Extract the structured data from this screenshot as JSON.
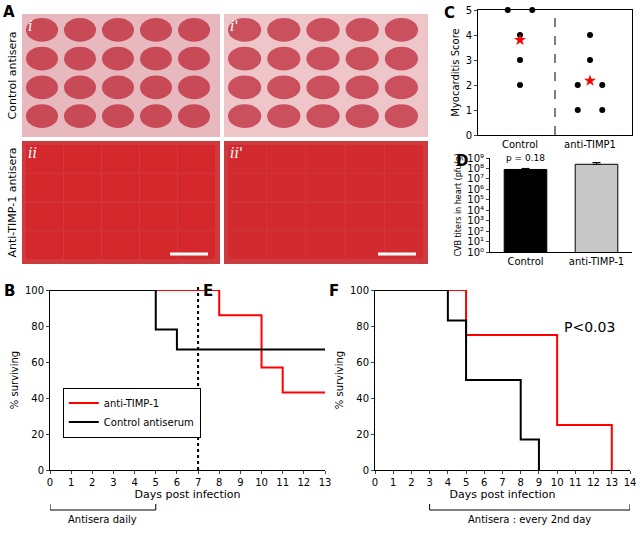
{
  "chart_data": [
    {
      "type": "image",
      "panels": [
        "A"
      ],
      "row_labels": [
        "Control antisera",
        "Anti-TIMP-1 antisera"
      ],
      "image_labels": [
        [
          "i",
          "i'"
        ],
        [
          "ii",
          "ii'"
        ]
      ]
    },
    {
      "type": "scatter",
      "panels": [
        "C"
      ],
      "categories": [
        "Control",
        "anti-TIMP1"
      ],
      "ylabel": "Myocarditis Score",
      "ylim": [
        0,
        5
      ],
      "yticks": [
        0,
        1,
        2,
        3,
        4,
        5
      ],
      "series": [
        {
          "values": [
            [
              5,
              5,
              4,
              3,
              2
            ],
            [
              4,
              3,
              2,
              2,
              1,
              1
            ]
          ],
          "color": "#000000",
          "marker": "circle"
        },
        {
          "values": [
            3.8,
            2.17
          ],
          "color": "#ff0000",
          "marker": "star"
        }
      ]
    },
    {
      "type": "bar",
      "panels": [
        "D"
      ],
      "categories": [
        "Control",
        "anti-TIMP-1"
      ],
      "values": [
        80000000,
        250000000
      ],
      "errors": [
        20000000,
        120000000
      ],
      "colors": [
        "#000000",
        "#c8c8c8"
      ],
      "log": "y",
      "ylabel": "CVB titers in heart (pfu/g)",
      "ylim": [
        1,
        1000000000
      ],
      "yticks": [
        {
          "value": 1,
          "label": "10⁰"
        },
        {
          "value": 10,
          "label": "10¹"
        },
        {
          "value": 100,
          "label": "10²"
        },
        {
          "value": 1000,
          "label": "10³"
        },
        {
          "value": 10000,
          "label": "10⁴"
        },
        {
          "value": 100000,
          "label": "10⁵"
        },
        {
          "value": 1000000,
          "label": "10⁶"
        },
        {
          "value": 10000000,
          "label": "10⁷"
        },
        {
          "value": 100000000,
          "label": "10⁸"
        },
        {
          "value": 1000000000,
          "label": "10⁹"
        }
      ],
      "annotations": [
        {
          "text": "p = 0.18",
          "category": "Control"
        }
      ]
    },
    {
      "type": "line",
      "panels": [
        "B",
        "E"
      ],
      "xlabel": "Days post infection",
      "ylabel": "% surviving",
      "xlim": [
        0,
        13
      ],
      "xticks": [
        0,
        1,
        2,
        3,
        4,
        5,
        6,
        7,
        8,
        9,
        10,
        11,
        12,
        13
      ],
      "ylim": [
        0,
        100
      ],
      "yticks": [
        0,
        20,
        40,
        60,
        80,
        100
      ],
      "line_style": "step",
      "legend": "lower left",
      "divider": 7,
      "bracket": {
        "text": "Antisera daily",
        "x": [
          0,
          5
        ]
      },
      "series": [
        {
          "name": "anti-TIMP-1",
          "color": "#ff0000",
          "x": [
            0,
            8,
            10,
            11,
            13
          ],
          "values": [
            100,
            86,
            57,
            43,
            43
          ]
        },
        {
          "name": "Control antiserum",
          "color": "#000000",
          "x": [
            0,
            5,
            6,
            13
          ],
          "values": [
            100,
            78,
            67,
            67
          ]
        }
      ]
    },
    {
      "type": "line",
      "panels": [
        "F"
      ],
      "xlabel": "Days post infection",
      "ylabel": "% surviving",
      "xlim": [
        0,
        14
      ],
      "xticks": [
        0,
        1,
        2,
        3,
        4,
        5,
        6,
        7,
        8,
        9,
        10,
        11,
        12,
        13,
        14
      ],
      "ylim": [
        0,
        100
      ],
      "yticks": [
        0,
        20,
        40,
        60,
        80,
        100
      ],
      "line_style": "step",
      "bracket": {
        "text": "Antisera : every 2nd day",
        "x": [
          3,
          14
        ]
      },
      "annotations": [
        {
          "text": "P<0.03"
        }
      ],
      "series": [
        {
          "color": "#ff0000",
          "x": [
            0,
            5,
            10,
            13
          ],
          "values": [
            100,
            75,
            25,
            0
          ]
        },
        {
          "color": "#000000",
          "x": [
            0,
            4,
            5,
            8,
            9
          ],
          "values": [
            100,
            83,
            50,
            17,
            0
          ]
        }
      ]
    }
  ]
}
